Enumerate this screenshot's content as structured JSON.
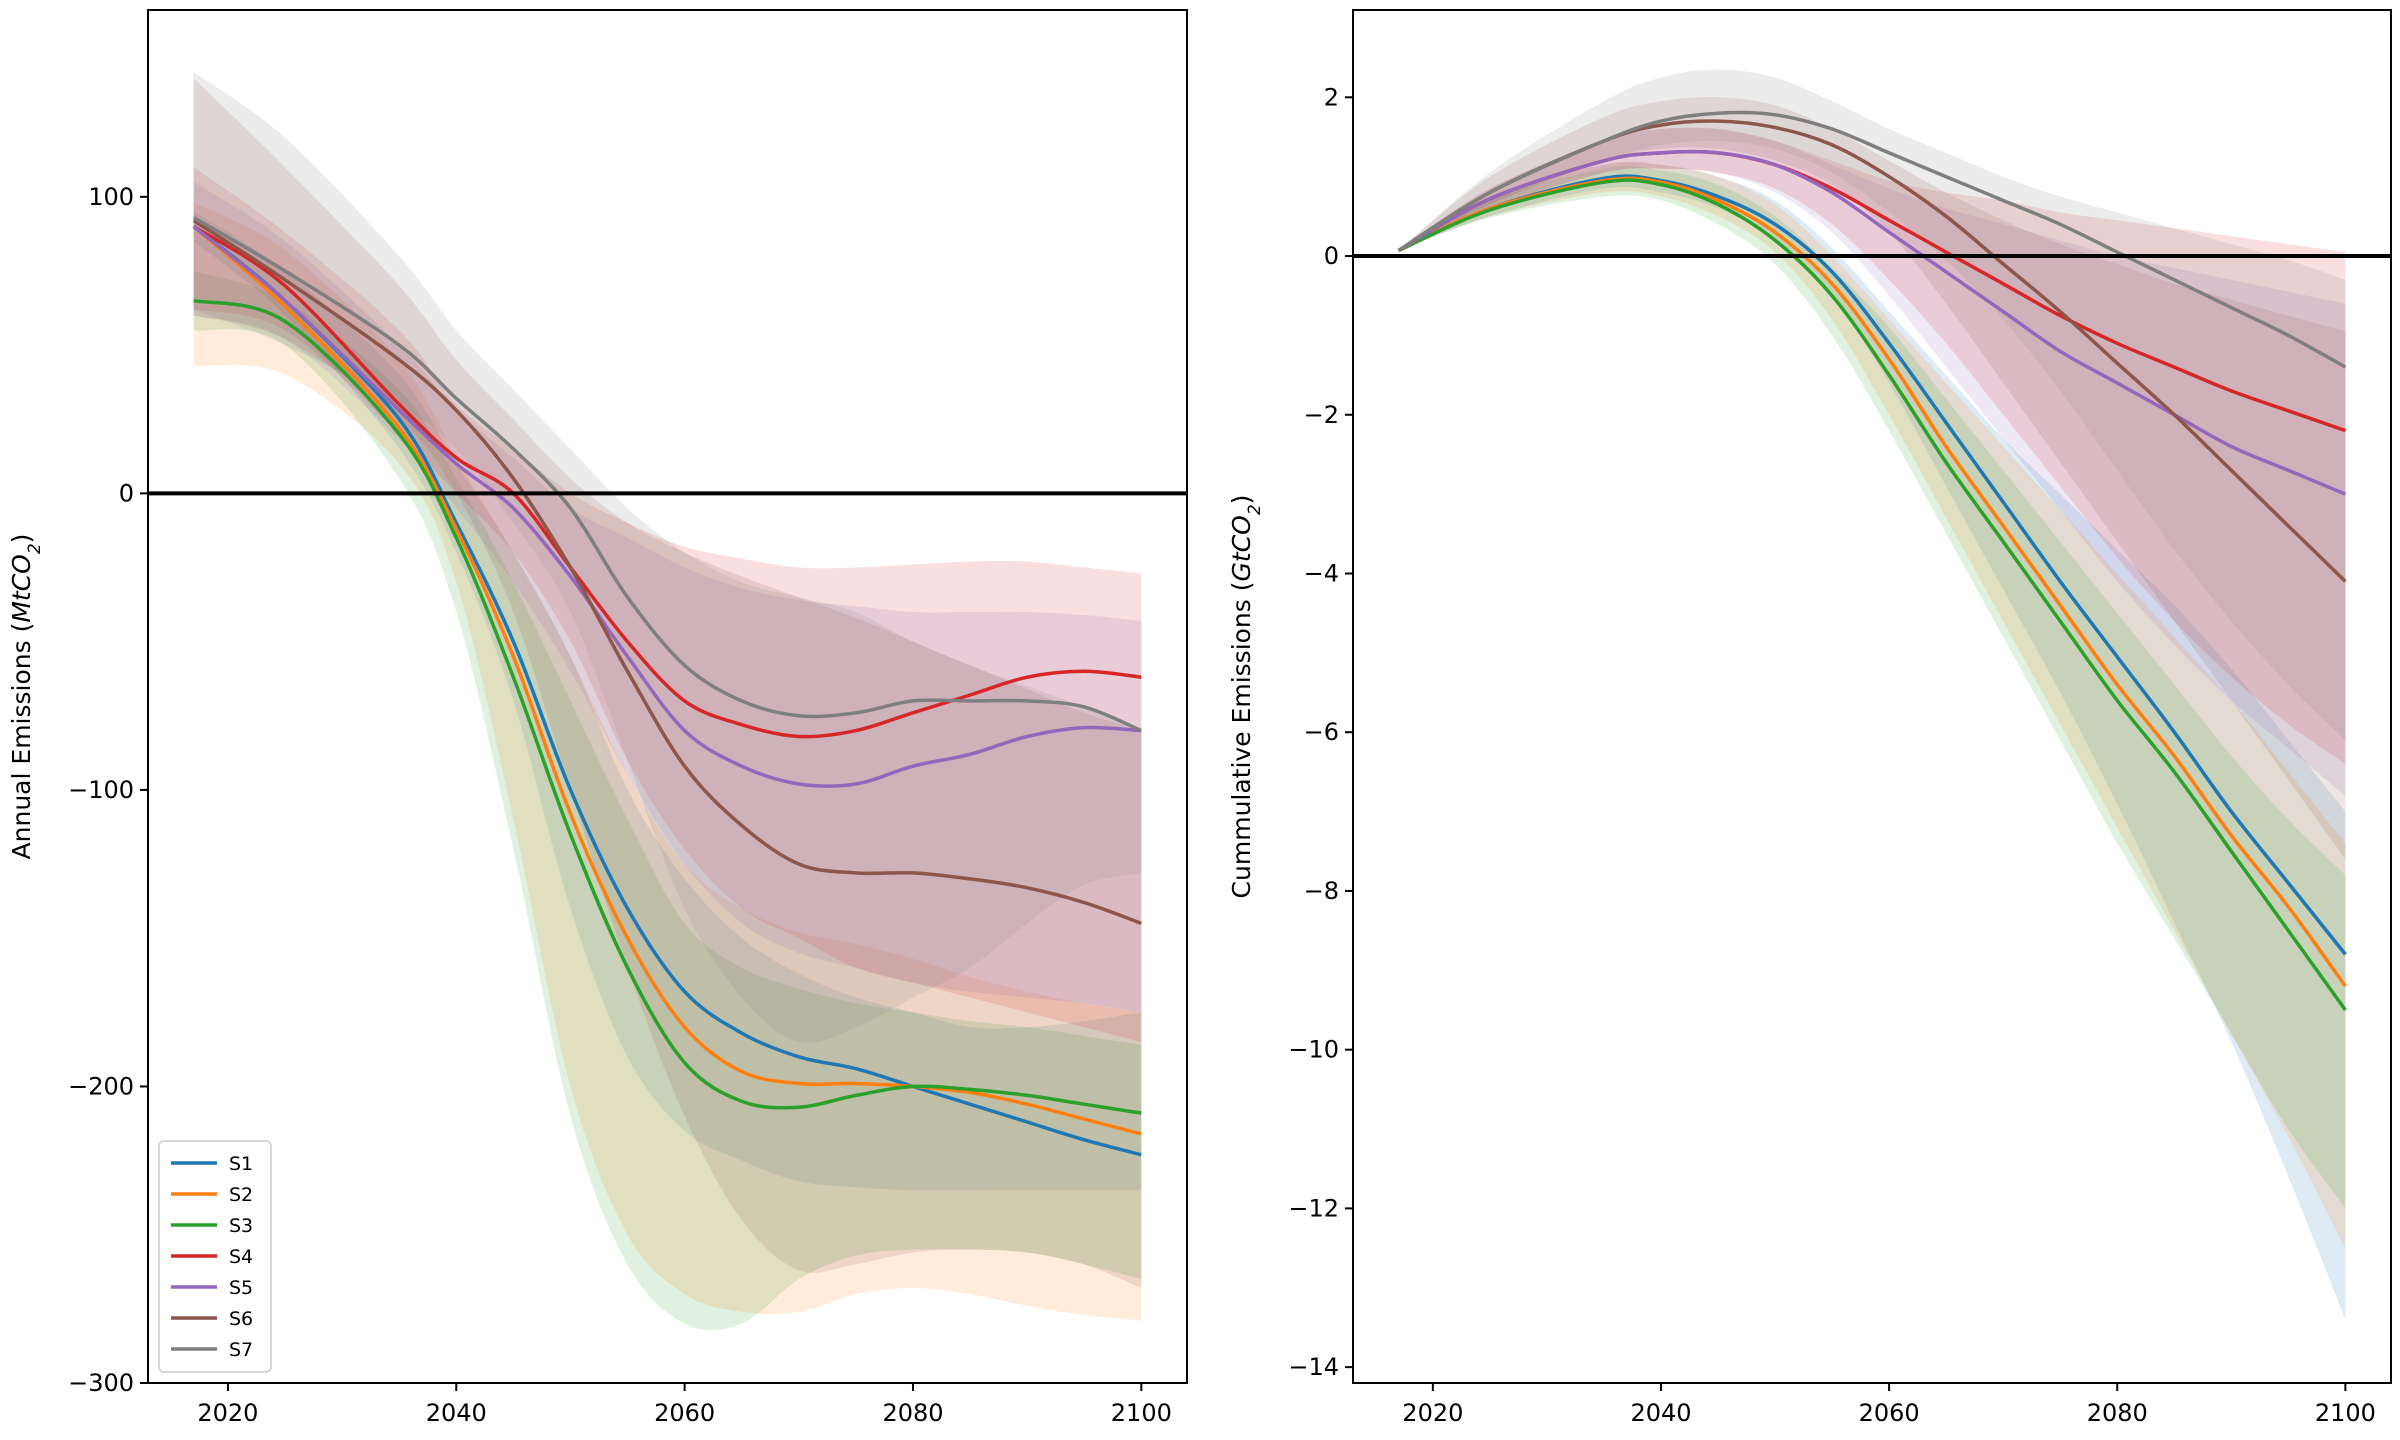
{
  "figure": {
    "background": "#ffffff"
  },
  "chart_data": [
    {
      "type": "line",
      "title": "",
      "xlabel": "",
      "ylabel": {
        "prefix": "Annual Emissions (",
        "var": "MtCO",
        "sub": "2",
        "suffix": ")"
      },
      "xlim": [
        2013,
        2104
      ],
      "ylim": [
        -300,
        163
      ],
      "xticks": [
        2020,
        2040,
        2060,
        2080,
        2100
      ],
      "yticks": [
        -300,
        -200,
        -100,
        0,
        100
      ],
      "grid": false,
      "zero_line": true,
      "legend": {
        "position": "lower-left",
        "entries": [
          "S1",
          "S2",
          "S3",
          "S4",
          "S5",
          "S6",
          "S7"
        ]
      },
      "x": [
        2017,
        2025,
        2035,
        2040,
        2045,
        2050,
        2055,
        2060,
        2065,
        2070,
        2075,
        2080,
        2085,
        2090,
        2095,
        2100
      ],
      "series": [
        {
          "name": "S1",
          "color": "#1f77b4",
          "values": [
            90,
            65,
            25,
            -10,
            -50,
            -100,
            -140,
            -168,
            -182,
            -190,
            -194,
            -200,
            -206,
            -212,
            -218,
            -223
          ],
          "lower": [
            85,
            60,
            15,
            -20,
            -70,
            -140,
            -190,
            -215,
            -225,
            -232,
            -234,
            -235,
            -235,
            -235,
            -235,
            -235
          ],
          "upper": [
            95,
            75,
            40,
            10,
            -20,
            -55,
            -100,
            -130,
            -150,
            -162,
            -170,
            -175,
            -180,
            -180,
            -178,
            -175
          ]
        },
        {
          "name": "S2",
          "color": "#ff7f0e",
          "values": [
            90,
            63,
            22,
            -12,
            -55,
            -108,
            -150,
            -180,
            -195,
            -199,
            -199,
            -200,
            -202,
            -206,
            -211,
            -216
          ],
          "lower": [
            43,
            40,
            10,
            -30,
            -110,
            -200,
            -250,
            -270,
            -276,
            -276,
            -270,
            -268,
            -270,
            -274,
            -277,
            -279
          ],
          "upper": [
            98,
            82,
            45,
            12,
            -20,
            -55,
            -95,
            -125,
            -140,
            -148,
            -152,
            -157,
            -163,
            -168,
            -172,
            -175
          ]
        },
        {
          "name": "S3",
          "color": "#2ca02c",
          "values": [
            65,
            58,
            20,
            -15,
            -62,
            -115,
            -160,
            -192,
            -205,
            -207,
            -203,
            -200,
            -201,
            -203,
            -206,
            -209
          ],
          "lower": [
            55,
            50,
            5,
            -40,
            -120,
            -210,
            -260,
            -280,
            -280,
            -265,
            -257,
            -255,
            -255,
            -256,
            -260,
            -265
          ],
          "upper": [
            75,
            65,
            35,
            5,
            -30,
            -70,
            -110,
            -145,
            -160,
            -167,
            -172,
            -175,
            -178,
            -180,
            -183,
            -186
          ]
        },
        {
          "name": "S4",
          "color": "#d62728",
          "values": [
            90,
            70,
            30,
            12,
            0,
            -25,
            -50,
            -70,
            -78,
            -82,
            -80,
            -74,
            -68,
            -62,
            -60,
            -62
          ],
          "lower": [
            62,
            55,
            20,
            0,
            -20,
            -50,
            -90,
            -120,
            -140,
            -150,
            -160,
            -165,
            -170,
            -175,
            -180,
            -185
          ],
          "upper": [
            110,
            88,
            55,
            30,
            15,
            0,
            -10,
            -18,
            -22,
            -25,
            -25,
            -24,
            -23,
            -23,
            -25,
            -27
          ]
        },
        {
          "name": "S5",
          "color": "#9467bd",
          "values": [
            90,
            65,
            28,
            10,
            -5,
            -28,
            -55,
            -80,
            -92,
            -98,
            -98,
            -92,
            -88,
            -82,
            -79,
            -80
          ],
          "lower": [
            60,
            52,
            18,
            -5,
            -30,
            -60,
            -95,
            -125,
            -145,
            -155,
            -160,
            -165,
            -168,
            -170,
            -172,
            -175
          ],
          "upper": [
            105,
            85,
            50,
            28,
            12,
            -5,
            -15,
            -25,
            -32,
            -36,
            -38,
            -40,
            -40,
            -40,
            -41,
            -43
          ]
        },
        {
          "name": "S6",
          "color": "#8c564b",
          "values": [
            92,
            72,
            45,
            28,
            5,
            -25,
            -60,
            -92,
            -112,
            -125,
            -128,
            -128,
            -130,
            -133,
            -138,
            -145
          ],
          "lower": [
            60,
            52,
            25,
            0,
            -40,
            -100,
            -160,
            -210,
            -245,
            -262,
            -260,
            -256,
            -255,
            -256,
            -260,
            -268
          ],
          "upper": [
            140,
            110,
            70,
            45,
            25,
            5,
            -10,
            -20,
            -28,
            -35,
            -42,
            -50,
            -58,
            -66,
            -74,
            -80
          ]
        },
        {
          "name": "S7",
          "color": "#7f7f7f",
          "values": [
            93,
            75,
            50,
            32,
            15,
            -5,
            -35,
            -58,
            -70,
            -75,
            -74,
            -70,
            -70,
            -70,
            -72,
            -80
          ],
          "lower": [
            62,
            50,
            30,
            15,
            -10,
            -40,
            -90,
            -140,
            -170,
            -185,
            -180,
            -170,
            -160,
            -145,
            -132,
            -128
          ],
          "upper": [
            142,
            120,
            80,
            55,
            35,
            15,
            -5,
            -20,
            -30,
            -35,
            -40,
            -50,
            -58,
            -65,
            -72,
            -80
          ]
        }
      ]
    },
    {
      "type": "line",
      "title": "",
      "xlabel": "",
      "ylabel": {
        "prefix": "Cummulative Emissions (",
        "var": "GtCO",
        "sub": "2",
        "suffix": ")"
      },
      "xlim": [
        2013,
        2104
      ],
      "ylim": [
        -14.2,
        3.1
      ],
      "xticks": [
        2020,
        2040,
        2060,
        2080,
        2100
      ],
      "yticks": [
        -14,
        -12,
        -10,
        -8,
        -6,
        -4,
        -2,
        0,
        2
      ],
      "grid": false,
      "zero_line": true,
      "legend": null,
      "x": [
        2017,
        2025,
        2035,
        2040,
        2045,
        2050,
        2055,
        2060,
        2065,
        2070,
        2075,
        2080,
        2085,
        2090,
        2095,
        2100
      ],
      "series": [
        {
          "name": "S1",
          "color": "#1f77b4",
          "values": [
            0.07,
            0.6,
            0.98,
            0.95,
            0.75,
            0.4,
            -0.2,
            -1.1,
            -2.1,
            -3.1,
            -4.1,
            -5.05,
            -6.0,
            -7.0,
            -7.9,
            -8.8
          ],
          "lower": [
            0.07,
            0.5,
            0.85,
            0.8,
            0.6,
            0.2,
            -0.5,
            -1.6,
            -2.9,
            -4.2,
            -5.5,
            -6.9,
            -8.4,
            -9.9,
            -11.6,
            -13.4
          ],
          "upper": [
            0.07,
            0.75,
            1.15,
            1.15,
            1.0,
            0.7,
            0.1,
            -0.7,
            -1.5,
            -2.3,
            -3.0,
            -3.7,
            -4.4,
            -5.2,
            -6.1,
            -7.0
          ]
        },
        {
          "name": "S2",
          "color": "#ff7f0e",
          "values": [
            0.07,
            0.6,
            0.95,
            0.93,
            0.7,
            0.3,
            -0.35,
            -1.3,
            -2.4,
            -3.4,
            -4.4,
            -5.4,
            -6.3,
            -7.3,
            -8.2,
            -9.2
          ],
          "lower": [
            0.07,
            0.5,
            0.8,
            0.75,
            0.5,
            0.05,
            -0.8,
            -2.0,
            -3.3,
            -4.6,
            -5.9,
            -7.2,
            -8.5,
            -9.8,
            -11.1,
            -12.5
          ],
          "upper": [
            0.07,
            0.75,
            1.15,
            1.15,
            1.0,
            0.65,
            0.0,
            -0.8,
            -1.6,
            -2.4,
            -3.2,
            -4.0,
            -4.8,
            -5.6,
            -6.5,
            -7.4
          ]
        },
        {
          "name": "S3",
          "color": "#2ca02c",
          "values": [
            0.07,
            0.58,
            0.93,
            0.9,
            0.65,
            0.2,
            -0.5,
            -1.5,
            -2.6,
            -3.6,
            -4.6,
            -5.6,
            -6.5,
            -7.5,
            -8.5,
            -9.5
          ],
          "lower": [
            0.07,
            0.48,
            0.75,
            0.7,
            0.4,
            -0.1,
            -1.0,
            -2.2,
            -3.5,
            -4.8,
            -6.1,
            -7.4,
            -8.6,
            -9.8,
            -11.0,
            -12.0
          ],
          "upper": [
            0.07,
            0.7,
            1.1,
            1.08,
            0.9,
            0.5,
            -0.15,
            -0.9,
            -1.8,
            -2.7,
            -3.6,
            -4.5,
            -5.4,
            -6.3,
            -7.1,
            -7.8
          ]
        },
        {
          "name": "S4",
          "color": "#d62728",
          "values": [
            0.07,
            0.72,
            1.2,
            1.3,
            1.3,
            1.15,
            0.85,
            0.45,
            0.05,
            -0.35,
            -0.75,
            -1.1,
            -1.4,
            -1.7,
            -1.95,
            -2.2
          ],
          "lower": [
            0.07,
            0.6,
            1.05,
            1.1,
            1.05,
            0.85,
            0.4,
            -0.3,
            -1.1,
            -2.0,
            -2.9,
            -3.8,
            -4.6,
            -5.3,
            -5.9,
            -6.4
          ],
          "upper": [
            0.07,
            0.85,
            1.45,
            1.6,
            1.6,
            1.45,
            1.2,
            0.95,
            0.8,
            0.7,
            0.55,
            0.45,
            0.35,
            0.25,
            0.15,
            0.05
          ]
        },
        {
          "name": "S5",
          "color": "#9467bd",
          "values": [
            0.07,
            0.72,
            1.2,
            1.3,
            1.3,
            1.15,
            0.8,
            0.3,
            -0.2,
            -0.7,
            -1.2,
            -1.6,
            -2.0,
            -2.4,
            -2.7,
            -3.0
          ],
          "lower": [
            0.07,
            0.6,
            1.05,
            1.1,
            1.05,
            0.8,
            0.3,
            -0.5,
            -1.4,
            -2.3,
            -3.2,
            -4.1,
            -4.9,
            -5.6,
            -6.2,
            -6.8
          ],
          "upper": [
            0.07,
            0.85,
            1.45,
            1.6,
            1.6,
            1.45,
            1.15,
            0.85,
            0.6,
            0.4,
            0.2,
            0.0,
            -0.15,
            -0.3,
            -0.45,
            -0.6
          ]
        },
        {
          "name": "S6",
          "color": "#8c564b",
          "values": [
            0.07,
            0.8,
            1.45,
            1.65,
            1.7,
            1.62,
            1.4,
            1.0,
            0.5,
            -0.1,
            -0.7,
            -1.35,
            -2.0,
            -2.7,
            -3.4,
            -4.1
          ],
          "lower": [
            0.07,
            0.65,
            1.2,
            1.35,
            1.35,
            1.2,
            0.9,
            0.3,
            -0.6,
            -1.6,
            -2.6,
            -3.6,
            -4.6,
            -5.6,
            -6.6,
            -7.6
          ],
          "upper": [
            0.07,
            1.0,
            1.75,
            1.95,
            2.0,
            1.9,
            1.6,
            1.2,
            0.8,
            0.45,
            0.15,
            -0.1,
            -0.35,
            -0.55,
            -0.75,
            -0.95
          ]
        },
        {
          "name": "S7",
          "color": "#7f7f7f",
          "values": [
            0.07,
            0.8,
            1.45,
            1.7,
            1.8,
            1.78,
            1.6,
            1.3,
            1.0,
            0.7,
            0.4,
            0.05,
            -0.3,
            -0.65,
            -1.0,
            -1.4
          ],
          "lower": [
            0.07,
            0.65,
            1.2,
            1.4,
            1.45,
            1.35,
            1.05,
            0.55,
            -0.05,
            -0.8,
            -1.7,
            -2.7,
            -3.7,
            -4.6,
            -5.4,
            -6.1
          ],
          "upper": [
            0.07,
            1.05,
            1.95,
            2.25,
            2.35,
            2.25,
            1.95,
            1.6,
            1.3,
            1.0,
            0.75,
            0.55,
            0.35,
            0.15,
            -0.05,
            -0.3
          ]
        }
      ]
    }
  ]
}
